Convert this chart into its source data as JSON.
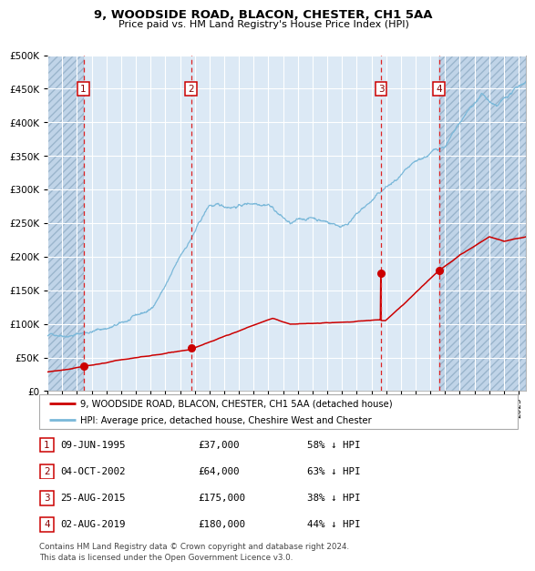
{
  "title": "9, WOODSIDE ROAD, BLACON, CHESTER, CH1 5AA",
  "subtitle": "Price paid vs. HM Land Registry's House Price Index (HPI)",
  "hpi_label": "HPI: Average price, detached house, Cheshire West and Chester",
  "house_label": "9, WOODSIDE ROAD, BLACON, CHESTER, CH1 5AA (detached house)",
  "footer1": "Contains HM Land Registry data © Crown copyright and database right 2024.",
  "footer2": "This data is licensed under the Open Government Licence v3.0.",
  "sales": [
    {
      "num": 1,
      "date": "09-JUN-1995",
      "x": 1995.44,
      "price": 37000,
      "label": "58% ↓ HPI"
    },
    {
      "num": 2,
      "date": "04-OCT-2002",
      "x": 2002.75,
      "price": 64000,
      "label": "63% ↓ HPI"
    },
    {
      "num": 3,
      "date": "25-AUG-2015",
      "x": 2015.65,
      "price": 175000,
      "label": "38% ↓ HPI"
    },
    {
      "num": 4,
      "date": "02-AUG-2019",
      "x": 2019.58,
      "price": 180000,
      "label": "44% ↓ HPI"
    }
  ],
  "ylim": [
    0,
    500000
  ],
  "yticks": [
    0,
    50000,
    100000,
    150000,
    200000,
    250000,
    300000,
    350000,
    400000,
    450000,
    500000
  ],
  "xlim": [
    1993,
    2025.5
  ],
  "hpi_color": "#7ab8d9",
  "house_color": "#cc0000",
  "plot_bg": "#dce9f5",
  "grid_color": "#ffffff",
  "dashed_color": "#dd2222",
  "number_box_color": "#cc0000",
  "hatch_color": "#c0d4e8"
}
